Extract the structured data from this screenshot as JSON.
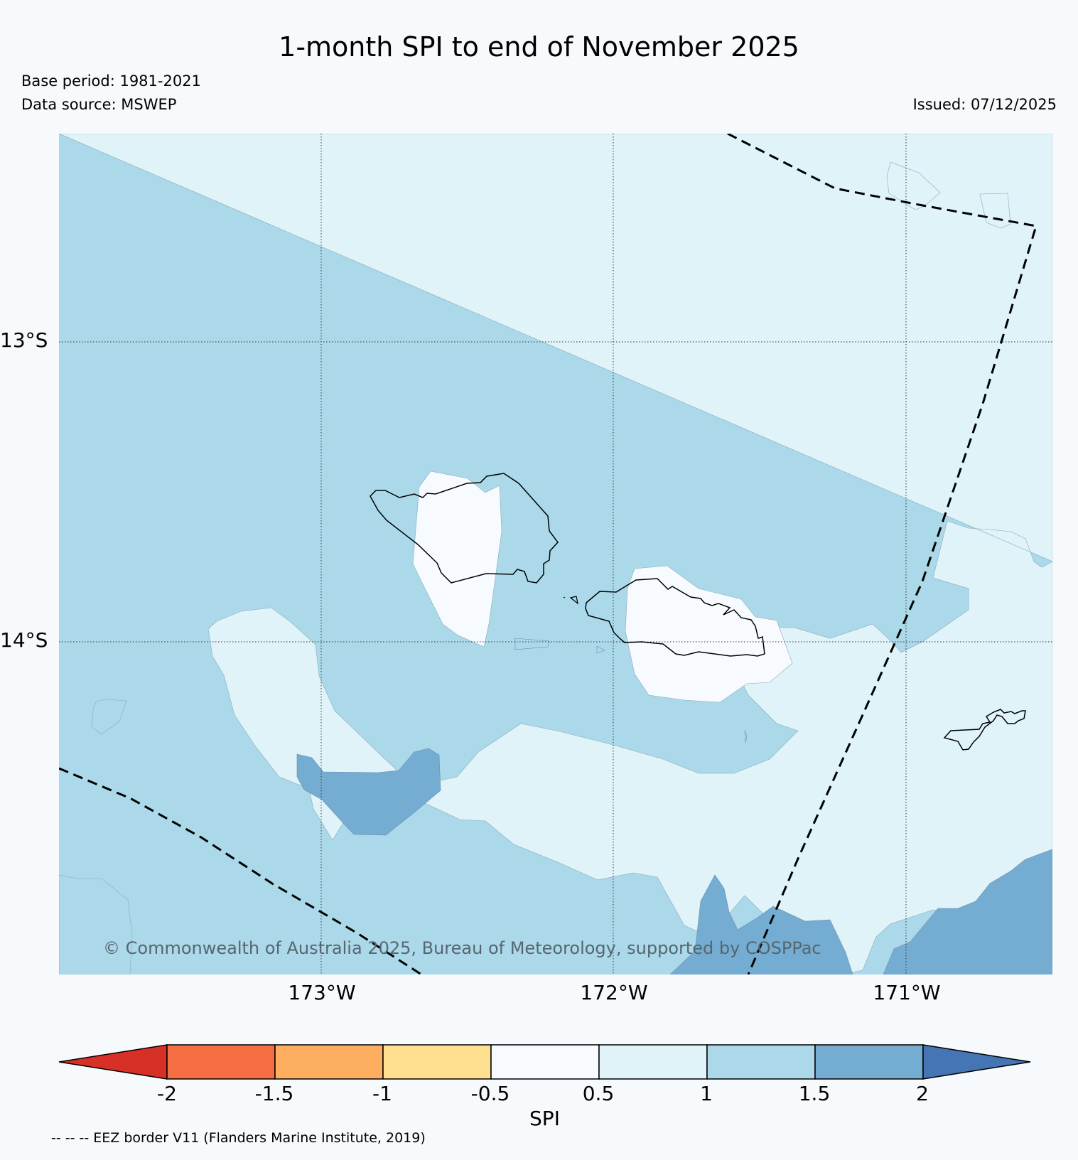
{
  "title": "1-month SPI to end of November 2025",
  "base_period": "Base period: 1981-2021",
  "data_source": "Data source: MSWEP",
  "issued": "Issued: 07/12/2025",
  "map": {
    "lat_labels": [
      "13°S",
      "14°S"
    ],
    "lon_labels": [
      "173°W",
      "172°W",
      "171°W"
    ],
    "copyright": "© Commonwealth of Australia 2025, Bureau of Meteorology, supported by COSPPac"
  },
  "colorbar": {
    "label": "SPI",
    "ticks": [
      "-2",
      "-1.5",
      "-1",
      "-0.5",
      "0.5",
      "1",
      "1.5",
      "2"
    ],
    "colors": [
      "#d73027",
      "#f46d43",
      "#fdae61",
      "#fee090",
      "#f7fbff",
      "#e0f3f8",
      "#abd9e9",
      "#74add1",
      "#4575b4"
    ]
  },
  "eez_note": "-- -- -- EEZ border V11 (Flanders Marine Institute, 2019)"
}
